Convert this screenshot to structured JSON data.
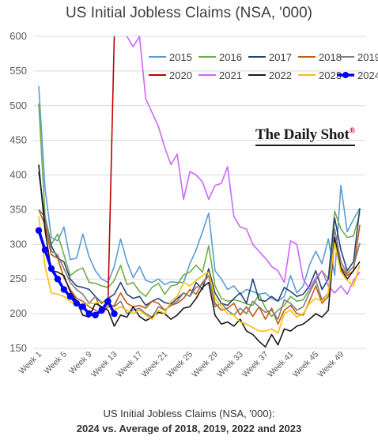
{
  "chart_data": {
    "type": "line",
    "title": "US Initial Jobless Claims (NSA, '000)",
    "ylim": [
      150,
      600
    ],
    "yticks": [
      150,
      200,
      250,
      300,
      350,
      400,
      450,
      500,
      550,
      600
    ],
    "xticks": [
      "Week 1",
      "Week 5",
      "Week 9",
      "Week 13",
      "Week 17",
      "Week 21",
      "Week 25",
      "Week 29",
      "Week 33",
      "Week 37",
      "Week 41",
      "Week 45",
      "Week 49"
    ],
    "x_weeks": [
      1,
      2,
      3,
      4,
      5,
      6,
      7,
      8,
      9,
      10,
      11,
      12,
      13,
      14,
      15,
      16,
      17,
      18,
      19,
      20,
      21,
      22,
      23,
      24,
      25,
      26,
      27,
      28,
      29,
      30,
      31,
      32,
      33,
      34,
      35,
      36,
      37,
      38,
      39,
      40,
      41,
      42,
      43,
      44,
      45,
      46,
      47,
      48,
      49,
      50,
      51,
      52
    ],
    "legend_position": "top-right",
    "series": [
      {
        "name": "2015",
        "color": "#5b9bd5",
        "values": [
          528,
          380,
          310,
          305,
          325,
          278,
          280,
          315,
          282,
          262,
          250,
          245,
          268,
          308,
          275,
          252,
          268,
          248,
          245,
          250,
          242,
          246,
          245,
          245,
          272,
          292,
          318,
          345,
          262,
          250,
          235,
          240,
          228,
          235,
          232,
          228,
          230,
          222,
          218,
          225,
          255,
          230,
          240,
          270,
          290,
          272,
          308,
          255,
          385,
          318,
          336,
          352
        ]
      },
      {
        "name": "2016",
        "color": "#70ad47",
        "values": [
          503,
          340,
          300,
          315,
          285,
          255,
          262,
          266,
          245,
          244,
          240,
          238,
          248,
          270,
          242,
          245,
          232,
          225,
          238,
          244,
          228,
          240,
          242,
          256,
          260,
          270,
          260,
          298,
          240,
          222,
          218,
          220,
          218,
          214,
          212,
          228,
          208,
          196,
          205,
          212,
          225,
          218,
          220,
          235,
          248,
          262,
          250,
          348,
          322,
          310,
          312,
          345
        ]
      },
      {
        "name": "2017",
        "color": "#264478",
        "values": [
          405,
          335,
          298,
          280,
          275,
          250,
          240,
          238,
          235,
          225,
          215,
          222,
          228,
          245,
          228,
          222,
          225,
          212,
          218,
          222,
          216,
          214,
          222,
          230,
          225,
          245,
          235,
          265,
          230,
          215,
          212,
          222,
          230,
          215,
          250,
          220,
          218,
          225,
          218,
          238,
          232,
          225,
          228,
          240,
          262,
          235,
          250,
          338,
          292,
          262,
          275,
          352
        ]
      },
      {
        "name": "2018",
        "color": "#c55a11",
        "values": [
          350,
          328,
          285,
          280,
          252,
          235,
          222,
          218,
          210,
          205,
          200,
          210,
          212,
          230,
          215,
          210,
          212,
          208,
          218,
          215,
          205,
          212,
          215,
          222,
          235,
          228,
          245,
          255,
          215,
          205,
          208,
          215,
          198,
          210,
          196,
          210,
          192,
          208,
          185,
          205,
          212,
          200,
          198,
          218,
          240,
          215,
          225,
          305,
          268,
          255,
          262,
          328
        ]
      },
      {
        "name": "2019",
        "color": "#7f7f7f",
        "values": [
          350,
          340,
          290,
          285,
          265,
          245,
          235,
          228,
          215,
          225,
          202,
          215,
          210,
          218,
          200,
          205,
          208,
          200,
          195,
          210,
          205,
          212,
          218,
          230,
          225,
          238,
          242,
          255,
          210,
          215,
          205,
          198,
          208,
          200,
          218,
          210,
          202,
          205,
          192,
          220,
          215,
          205,
          210,
          230,
          248,
          220,
          230,
          322,
          275,
          258,
          268,
          302
        ]
      },
      {
        "name": "2020",
        "color": "#c00000",
        "values": [
          null,
          null,
          null,
          null,
          null,
          null,
          null,
          null,
          null,
          null,
          null,
          218,
          610
        ]
      },
      {
        "name": "2021",
        "color": "#cc66ff",
        "values": [
          null,
          null,
          null,
          null,
          null,
          null,
          null,
          null,
          null,
          null,
          null,
          null,
          null,
          null,
          600,
          585,
          605,
          510,
          490,
          470,
          440,
          415,
          430,
          365,
          405,
          400,
          390,
          365,
          385,
          388,
          412,
          340,
          325,
          322,
          300,
          290,
          280,
          268,
          262,
          245,
          305,
          300,
          250,
          235,
          252,
          262,
          240,
          230,
          240,
          228,
          248,
          260
        ]
      },
      {
        "name": "2022",
        "color": "#1a1a1a",
        "values": [
          415,
          320,
          262,
          260,
          255,
          232,
          218,
          198,
          195,
          215,
          210,
          205,
          182,
          198,
          195,
          210,
          196,
          190,
          195,
          202,
          200,
          192,
          198,
          208,
          210,
          222,
          238,
          245,
          198,
          185,
          188,
          182,
          192,
          175,
          170,
          160,
          152,
          170,
          155,
          178,
          175,
          182,
          185,
          192,
          200,
          195,
          205,
          310,
          265,
          250,
          262,
          275
        ]
      },
      {
        "name": "2023",
        "color": "#ffc000",
        "values": [
          340,
          268,
          230,
          228,
          225,
          218,
          212,
          210,
          215,
          215,
          218,
          212,
          205,
          210,
          205,
          200,
          205,
          198,
          192,
          205,
          200,
          218,
          225,
          245,
          240,
          248,
          255,
          260,
          222,
          210,
          200,
          198,
          188,
          185,
          180,
          175,
          175,
          178,
          172,
          200,
          205,
          195,
          200,
          215,
          222,
          218,
          230,
          302,
          260,
          248,
          240,
          270
        ]
      },
      {
        "name": "2024",
        "color": "#0000ff",
        "values": [
          320,
          292,
          265,
          250,
          235,
          225,
          215,
          210,
          200,
          198,
          205,
          218,
          200
        ]
      }
    ]
  },
  "caption": {
    "line1": "US Initial Jobless Claims (NSA, '000):",
    "line2": "2024 vs. Average of 2018, 2019, 2022 and 2023"
  },
  "watermark": {
    "text": "The Daily Shot",
    "mark": "®"
  }
}
